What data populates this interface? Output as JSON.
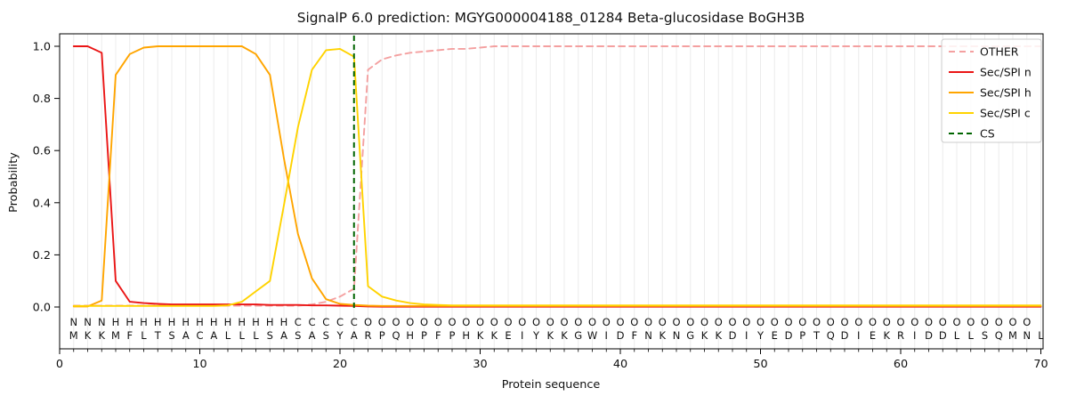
{
  "chart_data": {
    "type": "line",
    "title": "SignalP 6.0 prediction: MGYG000004188_01284 Beta-glucosidase BoGH3B",
    "xlabel": "Protein sequence",
    "ylabel": "Probability",
    "x_ticks": [
      0,
      10,
      20,
      30,
      40,
      50,
      60,
      70
    ],
    "y_ticks": [
      "0.0",
      "0.2",
      "0.4",
      "0.6",
      "0.8",
      "1.0"
    ],
    "xlim": [
      0,
      70.2
    ],
    "ylim": [
      -0.16,
      1.05
    ],
    "grid": "vertical gridline at every residue position, light gray, no horizontal gridlines",
    "legend_position": "upper right",
    "x_start": 1,
    "series": [
      {
        "name": "OTHER",
        "color": "#f4a0a0",
        "dash": "7 5",
        "values": [
          0.005,
          0.005,
          0.005,
          0.005,
          0.005,
          0.005,
          0.005,
          0.005,
          0.005,
          0.005,
          0.005,
          0.005,
          0.005,
          0.005,
          0.005,
          0.005,
          0.005,
          0.01,
          0.02,
          0.04,
          0.07,
          0.91,
          0.95,
          0.965,
          0.975,
          0.98,
          0.985,
          0.99,
          0.99,
          0.995,
          1,
          1,
          1,
          1,
          1,
          1,
          1,
          1,
          1,
          1,
          1,
          1,
          1,
          1,
          1,
          1,
          1,
          1,
          1,
          1,
          1,
          1,
          1,
          1,
          1,
          1,
          1,
          1,
          1,
          1,
          1,
          1,
          1,
          1,
          1,
          1,
          1,
          1,
          1,
          1
        ]
      },
      {
        "name": "Sec/SPI n",
        "color": "#ea1515",
        "dash": null,
        "values": [
          1,
          1,
          0.975,
          0.1,
          0.02,
          0.015,
          0.012,
          0.01,
          0.01,
          0.01,
          0.01,
          0.01,
          0.01,
          0.01,
          0.008,
          0.008,
          0.008,
          0.006,
          0.006,
          0.005,
          0.004,
          0.002,
          0.001,
          0.001,
          0.001,
          0.001,
          0.001,
          0.001,
          0.001,
          0.001,
          0.001,
          0.001,
          0.001,
          0.001,
          0.001,
          0.001,
          0.001,
          0.001,
          0.001,
          0.001,
          0.001,
          0.001,
          0.001,
          0.001,
          0.001,
          0.001,
          0.001,
          0.001,
          0.001,
          0.001,
          0.001,
          0.001,
          0.001,
          0.001,
          0.001,
          0.001,
          0.001,
          0.001,
          0.001,
          0.001,
          0.001,
          0.001,
          0.001,
          0.001,
          0.001,
          0.001,
          0.001,
          0.001,
          0.001,
          0.001
        ]
      },
      {
        "name": "Sec/SPI h",
        "color": "#ffa500",
        "dash": null,
        "values": [
          0.002,
          0.002,
          0.025,
          0.89,
          0.97,
          0.995,
          1,
          1,
          1,
          1,
          1,
          1,
          1,
          0.97,
          0.89,
          0.57,
          0.28,
          0.11,
          0.03,
          0.012,
          0.008,
          0.005,
          0.004,
          0.004,
          0.004,
          0.004,
          0.004,
          0.004,
          0.004,
          0.004,
          0.004,
          0.004,
          0.004,
          0.004,
          0.004,
          0.004,
          0.004,
          0.004,
          0.004,
          0.004,
          0.004,
          0.004,
          0.004,
          0.004,
          0.004,
          0.004,
          0.004,
          0.004,
          0.004,
          0.004,
          0.004,
          0.004,
          0.004,
          0.004,
          0.004,
          0.004,
          0.004,
          0.004,
          0.004,
          0.004,
          0.004,
          0.004,
          0.004,
          0.004,
          0.004,
          0.004,
          0.004,
          0.004,
          0.004,
          0.004
        ]
      },
      {
        "name": "Sec/SPI c",
        "color": "#ffd300",
        "dash": null,
        "values": [
          0.004,
          0.004,
          0.004,
          0.004,
          0.004,
          0.004,
          0.004,
          0.004,
          0.004,
          0.004,
          0.004,
          0.006,
          0.02,
          0.06,
          0.1,
          0.39,
          0.69,
          0.91,
          0.985,
          0.99,
          0.96,
          0.08,
          0.04,
          0.025,
          0.015,
          0.01,
          0.008,
          0.006,
          0.006,
          0.006,
          0.006,
          0.006,
          0.006,
          0.006,
          0.006,
          0.006,
          0.006,
          0.006,
          0.006,
          0.006,
          0.006,
          0.006,
          0.006,
          0.006,
          0.006,
          0.006,
          0.006,
          0.006,
          0.006,
          0.006,
          0.006,
          0.006,
          0.006,
          0.006,
          0.006,
          0.006,
          0.006,
          0.006,
          0.006,
          0.006,
          0.006,
          0.006,
          0.006,
          0.006,
          0.006,
          0.006,
          0.006,
          0.006,
          0.006,
          0.006
        ]
      }
    ],
    "cs_line": {
      "name": "CS",
      "x": 21,
      "color": "#006400",
      "dash": "6 4"
    },
    "sequence_annotation": {
      "sequence": "MKKMFLTSACALLLSASASYARPQHPFPHKKEIYKKGWIDFNKNGKKDIYEDPTQDIEKRIDDLLSQMNL",
      "region_labels": "NNNHHHHHHHHHHHHHCCCCCOOOOOOOOOOOOOOOOOOOOOOOOOOOOOOOOOOOOOOOOOOOOOOOO",
      "region_colors": {
        "N": "#e81717",
        "H": "#ffa500",
        "C": "#f2c200",
        "O": "#a0a0a0"
      },
      "sequence_color": "#3b3b3b"
    }
  }
}
